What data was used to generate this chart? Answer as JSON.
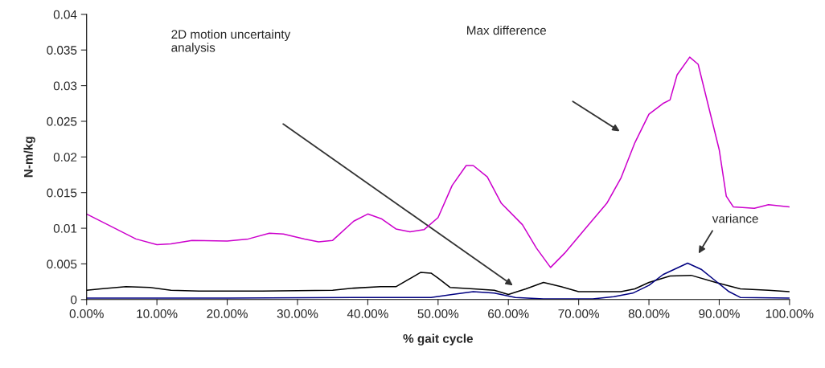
{
  "chart_data": {
    "type": "line",
    "xlabel": "% gait cycle",
    "ylabel": "N-m/kg",
    "xlim": [
      0,
      100
    ],
    "ylim": [
      0,
      0.04
    ],
    "xticks": [
      {
        "value": 0,
        "label": "0.00%"
      },
      {
        "value": 10,
        "label": "10.00%"
      },
      {
        "value": 20,
        "label": "20.00%"
      },
      {
        "value": 30,
        "label": "30.00%"
      },
      {
        "value": 40,
        "label": "40.00%"
      },
      {
        "value": 50,
        "label": "50.00%"
      },
      {
        "value": 60,
        "label": "60.00%"
      },
      {
        "value": 70,
        "label": "70.00%"
      },
      {
        "value": 80,
        "label": "80.00%"
      },
      {
        "value": 90,
        "label": "90.00%"
      },
      {
        "value": 100,
        "label": "100.00%"
      }
    ],
    "yticks": [
      0,
      0.005,
      0.01,
      0.015,
      0.02,
      0.025,
      0.03,
      0.035,
      0.04
    ],
    "grid": false,
    "legend": false,
    "marker": "none",
    "line_style": "solid",
    "series": [
      {
        "color": "#cc00cc",
        "x": [
          0,
          3,
          7,
          10,
          12,
          15,
          20,
          23,
          26,
          28,
          31,
          33,
          35,
          38,
          40,
          42,
          44,
          46,
          48,
          50,
          52,
          54,
          55,
          57,
          59,
          62,
          64,
          66,
          68,
          71,
          74,
          76,
          78,
          80,
          82,
          83,
          84,
          85.8,
          87,
          88,
          90,
          91,
          92,
          95,
          97,
          100
        ],
        "values": [
          0.012,
          0.0105,
          0.0085,
          0.0077,
          0.0078,
          0.0083,
          0.0082,
          0.0085,
          0.0093,
          0.0092,
          0.0085,
          0.0081,
          0.0083,
          0.011,
          0.012,
          0.0113,
          0.0099,
          0.0095,
          0.0098,
          0.0115,
          0.016,
          0.0188,
          0.0188,
          0.0172,
          0.0135,
          0.0105,
          0.0072,
          0.0045,
          0.0065,
          0.01,
          0.0135,
          0.017,
          0.022,
          0.026,
          0.0275,
          0.028,
          0.0315,
          0.034,
          0.033,
          0.029,
          0.021,
          0.0145,
          0.013,
          0.0128,
          0.0133,
          0.013
        ]
      },
      {
        "color": "#000000",
        "x": [
          0,
          2,
          5.6,
          9,
          12,
          16,
          25,
          35,
          38,
          41.8,
          44,
          47.5,
          49,
          50,
          51.7,
          55,
          58,
          60,
          62.5,
          65,
          67.5,
          70,
          76,
          78,
          80,
          83,
          86,
          89.5,
          93,
          97,
          100
        ],
        "values": [
          0.0013,
          0.0015,
          0.0018,
          0.0017,
          0.0013,
          0.0012,
          0.0012,
          0.0013,
          0.0016,
          0.0018,
          0.0018,
          0.0038,
          0.0037,
          0.003,
          0.0017,
          0.0015,
          0.0013,
          0.0007,
          0.0015,
          0.0024,
          0.0018,
          0.0011,
          0.0011,
          0.0015,
          0.0024,
          0.0033,
          0.0034,
          0.0024,
          0.0015,
          0.0013,
          0.0011
        ]
      },
      {
        "color": "#000080",
        "x": [
          0,
          20,
          38,
          49,
          52,
          55,
          58,
          61,
          65,
          72,
          75,
          77.7,
          80,
          82,
          85.5,
          87.5,
          89.5,
          91.4,
          93,
          100
        ],
        "values": [
          0.0002,
          0.0002,
          0.0003,
          0.0003,
          0.0007,
          0.0011,
          0.0009,
          0.0003,
          0.0001,
          0.0001,
          0.0004,
          0.0009,
          0.002,
          0.0035,
          0.0051,
          0.0042,
          0.0026,
          0.0011,
          0.0003,
          0.0002
        ]
      }
    ],
    "annotations": [
      "2D motion uncertainty\nanalysis",
      "Max difference",
      "variance"
    ]
  }
}
